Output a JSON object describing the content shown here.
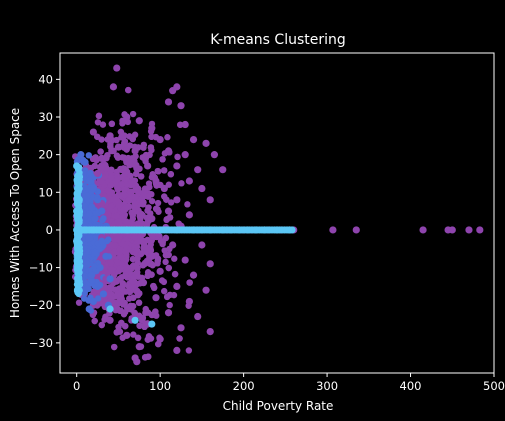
{
  "chart_data": {
    "type": "scatter",
    "title": "K-means Clustering",
    "xlabel": "Child Poverty Rate",
    "ylabel": "Homes With Access To Open Space",
    "xlim": [
      -20,
      500
    ],
    "ylim": [
      -38,
      47
    ],
    "xticks": [
      0,
      100,
      200,
      300,
      400,
      500
    ],
    "yticks": [
      -30,
      -20,
      -10,
      0,
      10,
      20,
      30,
      40
    ],
    "grid": false,
    "legend": "none",
    "background": "#000000",
    "series": [
      {
        "color": "#8e44ad",
        "description_points": [
          [
            48,
            43
          ],
          [
            44,
            38
          ],
          [
            120,
            38
          ],
          [
            115,
            37
          ],
          [
            110,
            34
          ],
          [
            125,
            33
          ],
          [
            60,
            30
          ],
          [
            75,
            29
          ],
          [
            130,
            28
          ],
          [
            90,
            27
          ],
          [
            20,
            26
          ],
          [
            40,
            25
          ],
          [
            100,
            24
          ],
          [
            140,
            24
          ],
          [
            155,
            23
          ],
          [
            50,
            22
          ],
          [
            70,
            21
          ],
          [
            110,
            21
          ],
          [
            130,
            20
          ],
          [
            165,
            20
          ],
          [
            30,
            19
          ],
          [
            60,
            18
          ],
          [
            85,
            17
          ],
          [
            120,
            17
          ],
          [
            145,
            16
          ],
          [
            175,
            16
          ],
          [
            25,
            15
          ],
          [
            55,
            14
          ],
          [
            95,
            13
          ],
          [
            135,
            13
          ],
          [
            65,
            12
          ],
          [
            105,
            11
          ],
          [
            150,
            11
          ],
          [
            40,
            10
          ],
          [
            80,
            9
          ],
          [
            120,
            8
          ],
          [
            160,
            8
          ],
          [
            30,
            7
          ],
          [
            70,
            6
          ],
          [
            110,
            5
          ],
          [
            135,
            4
          ],
          [
            90,
            3
          ],
          [
            50,
            2
          ],
          [
            125,
            1
          ],
          [
            145,
            0
          ],
          [
            180,
            0
          ],
          [
            200,
            0
          ],
          [
            210,
            0
          ],
          [
            230,
            0
          ],
          [
            245,
            0
          ],
          [
            260,
            0
          ],
          [
            307,
            0
          ],
          [
            335,
            0
          ],
          [
            415,
            0
          ],
          [
            445,
            0
          ],
          [
            450,
            0
          ],
          [
            470,
            0
          ],
          [
            483,
            0
          ],
          [
            30,
            -2
          ],
          [
            75,
            -3
          ],
          [
            115,
            -4
          ],
          [
            150,
            -4
          ],
          [
            45,
            -6
          ],
          [
            90,
            -7
          ],
          [
            130,
            -8
          ],
          [
            160,
            -9
          ],
          [
            60,
            -10
          ],
          [
            100,
            -11
          ],
          [
            140,
            -12
          ],
          [
            35,
            -13
          ],
          [
            80,
            -14
          ],
          [
            120,
            -15
          ],
          [
            155,
            -16
          ],
          [
            50,
            -17
          ],
          [
            95,
            -18
          ],
          [
            135,
            -19
          ],
          [
            20,
            -20
          ],
          [
            65,
            -21
          ],
          [
            110,
            -22
          ],
          [
            145,
            -23
          ],
          [
            40,
            -24
          ],
          [
            85,
            -25
          ],
          [
            125,
            -26
          ],
          [
            160,
            -27
          ],
          [
            60,
            -28
          ],
          [
            100,
            -29
          ],
          [
            75,
            -31
          ],
          [
            120,
            -32
          ],
          [
            70,
            -34
          ],
          [
            72,
            -35
          ]
        ]
      },
      {
        "color": "#4a6bd6",
        "description_points": [
          [
            5,
            20
          ],
          [
            10,
            18
          ],
          [
            8,
            15
          ],
          [
            15,
            13
          ],
          [
            20,
            11
          ],
          [
            12,
            9
          ],
          [
            25,
            8
          ],
          [
            18,
            6
          ],
          [
            30,
            5
          ],
          [
            22,
            3
          ],
          [
            10,
            2
          ],
          [
            35,
            1
          ],
          [
            28,
            0
          ],
          [
            40,
            0
          ],
          [
            55,
            0
          ],
          [
            15,
            -2
          ],
          [
            30,
            -3
          ],
          [
            8,
            -5
          ],
          [
            22,
            -6
          ],
          [
            35,
            -7
          ],
          [
            12,
            -9
          ],
          [
            28,
            -10
          ],
          [
            18,
            -12
          ],
          [
            40,
            -13
          ],
          [
            25,
            -15
          ],
          [
            10,
            -16
          ],
          [
            32,
            -17
          ],
          [
            20,
            -19
          ],
          [
            38,
            -20
          ],
          [
            15,
            -21
          ]
        ]
      },
      {
        "color": "#5bc6f5",
        "description_points": [
          [
            0,
            17
          ],
          [
            2,
            14
          ],
          [
            1,
            11
          ],
          [
            3,
            8
          ],
          [
            0,
            5
          ],
          [
            2,
            3
          ],
          [
            1,
            0
          ],
          [
            5,
            0
          ],
          [
            10,
            0
          ],
          [
            20,
            0
          ],
          [
            45,
            0
          ],
          [
            60,
            0
          ],
          [
            80,
            0
          ],
          [
            100,
            0
          ],
          [
            120,
            0
          ],
          [
            140,
            0
          ],
          [
            150,
            0
          ],
          [
            160,
            0
          ],
          [
            175,
            0
          ],
          [
            185,
            0
          ],
          [
            195,
            0
          ],
          [
            205,
            0
          ],
          [
            215,
            0
          ],
          [
            225,
            0
          ],
          [
            240,
            0
          ],
          [
            255,
            0
          ],
          [
            0,
            -3
          ],
          [
            2,
            -6
          ],
          [
            1,
            -9
          ],
          [
            3,
            -10
          ],
          [
            70,
            -24
          ],
          [
            90,
            -25
          ],
          [
            40,
            -21
          ]
        ]
      }
    ]
  }
}
